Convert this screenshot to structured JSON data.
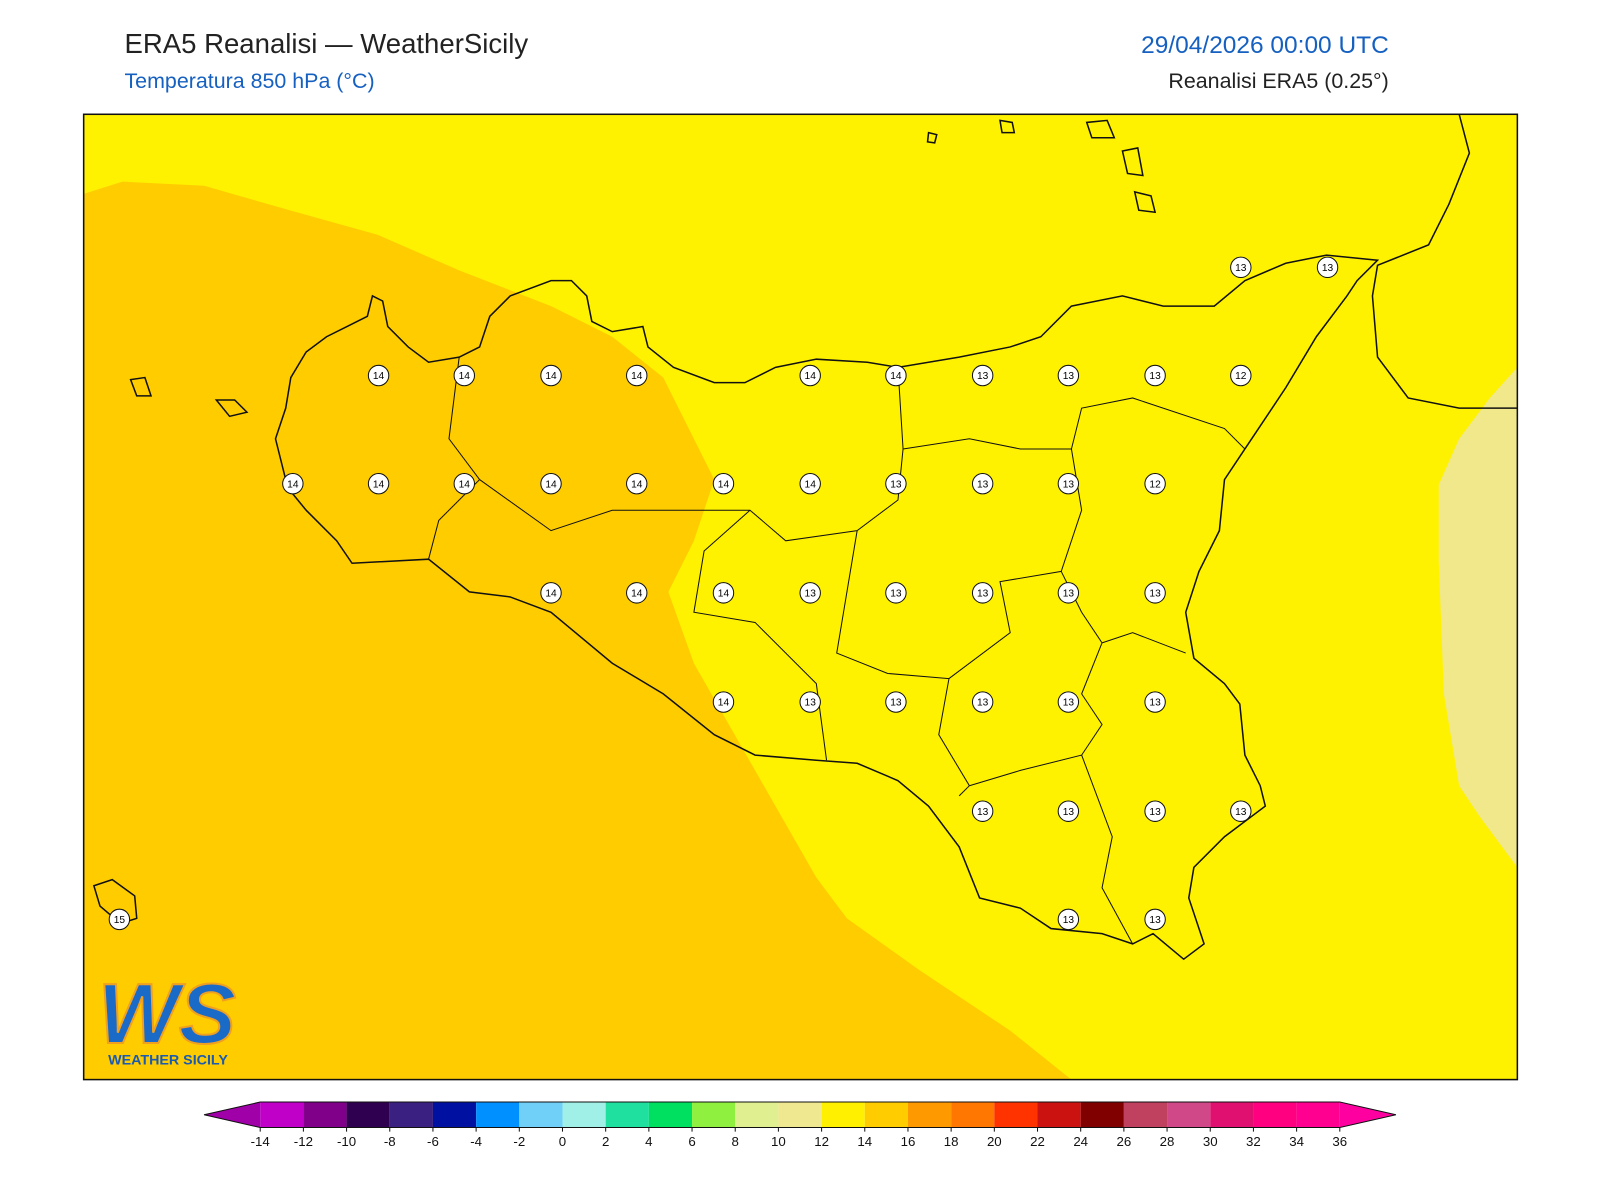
{
  "header": {
    "title": "ERA5 Reanalisi — WeatherSicily",
    "subtitle": "Temperatura 850 hPa (°C)",
    "datetime": "29/04/2026 00:00 UTC",
    "source": "Reanalisi ERA5 (0.25°)"
  },
  "map": {
    "station_values": [
      13,
      13,
      14,
      14,
      14,
      14,
      14,
      14,
      13,
      13,
      13,
      12,
      14,
      14,
      14,
      14,
      14,
      14,
      14,
      13,
      13,
      13,
      12,
      14,
      14,
      14,
      13,
      13,
      13,
      13,
      13,
      14,
      13,
      13,
      13,
      13,
      13,
      13,
      13,
      13,
      13,
      15,
      13,
      13
    ]
  },
  "colorbar": {
    "ticks": [
      -14,
      -12,
      -10,
      -8,
      -6,
      -4,
      -2,
      0,
      2,
      4,
      6,
      8,
      10,
      12,
      14,
      16,
      18,
      20,
      22,
      24,
      26,
      28,
      30,
      32,
      34,
      36
    ],
    "colors": [
      "#c000c8",
      "#80008a",
      "#300050",
      "#3a2080",
      "#0010a0",
      "#0090ff",
      "#70d0f8",
      "#a0f0e8",
      "#20e0a0",
      "#00e060",
      "#90f040",
      "#e0f090",
      "#f0e890",
      "#fff000",
      "#ffcc00",
      "#ff9900",
      "#ff7700",
      "#ff3300",
      "#cc1111",
      "#800000",
      "#c04060",
      "#d04888",
      "#e01070",
      "#ff0080",
      "#ff0090"
    ],
    "under_color": "#a000a8",
    "over_color": "#ff00a0"
  },
  "logo": {
    "text": "WS",
    "subtext": "WEATHER SICILY"
  }
}
